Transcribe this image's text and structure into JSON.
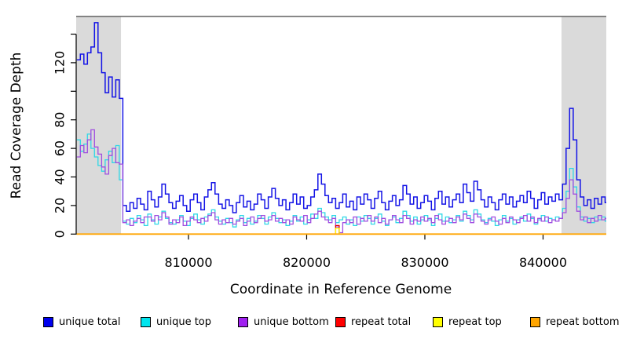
{
  "y_axis": {
    "label": "Read Coverage Depth",
    "ticks": [
      0,
      20,
      40,
      60,
      80,
      100,
      120,
      140
    ],
    "tick_labels": [
      "0",
      "20",
      "40",
      "60",
      "80",
      "",
      "120",
      ""
    ],
    "range": [
      0,
      152
    ]
  },
  "x_axis": {
    "label": "Coordinate in Reference Genome",
    "ticks": [
      810000,
      820000,
      830000,
      840000
    ],
    "tick_labels": [
      "810000",
      "820000",
      "830000",
      "840000"
    ],
    "range": [
      800500,
      845350
    ]
  },
  "legend": {
    "items": [
      {
        "label": "unique total",
        "color": "#0000EE"
      },
      {
        "label": "unique top",
        "color": "#00E5EE"
      },
      {
        "label": "unique bottom",
        "color": "#A020F0"
      },
      {
        "label": "repeat total",
        "color": "#FF0000"
      },
      {
        "label": "repeat top",
        "color": "#FFFF00"
      },
      {
        "label": "repeat bottom",
        "color": "#FFA500"
      }
    ]
  },
  "chart_data": {
    "type": "line",
    "step": true,
    "title": "",
    "xlabel": "Coordinate in Reference Genome",
    "ylabel": "Read Coverage Depth",
    "xlim": [
      800500,
      845350
    ],
    "ylim": [
      0,
      152
    ],
    "grid": false,
    "x_start": 800550,
    "x_step": 300,
    "n": 150,
    "shade_color": "#DADADA",
    "shaded_regions": [
      {
        "from": 800500,
        "to": 804290
      },
      {
        "from": 841560,
        "to": 845350
      }
    ],
    "series": [
      {
        "name": "unique total",
        "color": "#1414E6",
        "width": 1.5,
        "values": [
          122,
          126,
          119,
          127,
          131,
          148,
          127,
          113,
          99,
          110,
          96,
          108,
          95,
          20,
          16,
          22,
          18,
          25,
          21,
          17,
          30,
          24,
          19,
          26,
          35,
          28,
          22,
          18,
          23,
          27,
          20,
          16,
          24,
          28,
          22,
          17,
          26,
          31,
          36,
          28,
          21,
          18,
          24,
          20,
          15,
          22,
          27,
          19,
          23,
          17,
          21,
          28,
          24,
          18,
          26,
          32,
          25,
          20,
          24,
          17,
          22,
          28,
          21,
          26,
          18,
          20,
          26,
          31,
          42,
          35,
          27,
          22,
          25,
          18,
          22,
          28,
          19,
          23,
          17,
          26,
          21,
          28,
          24,
          18,
          25,
          30,
          22,
          17,
          23,
          27,
          20,
          24,
          34,
          28,
          21,
          26,
          18,
          22,
          27,
          23,
          17,
          25,
          30,
          21,
          26,
          19,
          24,
          28,
          22,
          35,
          29,
          23,
          37,
          31,
          24,
          19,
          26,
          22,
          17,
          24,
          28,
          21,
          26,
          19,
          23,
          27,
          22,
          30,
          25,
          18,
          24,
          29,
          21,
          26,
          23,
          28,
          24,
          35,
          60,
          88,
          66,
          38,
          26,
          20,
          24,
          18,
          25,
          21,
          26,
          22
        ]
      },
      {
        "name": "unique top",
        "color": "#2FD8E6",
        "width": 1.3,
        "values": [
          66,
          58,
          63,
          70,
          60,
          54,
          48,
          44,
          52,
          58,
          50,
          62,
          38,
          9,
          7,
          11,
          8,
          13,
          10,
          6,
          14,
          10,
          7,
          12,
          16,
          11,
          8,
          7,
          10,
          13,
          9,
          6,
          11,
          14,
          10,
          7,
          12,
          14,
          17,
          12,
          9,
          7,
          11,
          8,
          5,
          10,
          13,
          8,
          11,
          7,
          9,
          13,
          11,
          7,
          12,
          15,
          11,
          8,
          10,
          6,
          9,
          13,
          9,
          12,
          7,
          10,
          14,
          11,
          18,
          15,
          12,
          10,
          13,
          8,
          10,
          12,
          7,
          10,
          6,
          12,
          9,
          13,
          11,
          7,
          11,
          14,
          9,
          6,
          10,
          12,
          8,
          11,
          16,
          13,
          9,
          12,
          7,
          10,
          13,
          10,
          6,
          11,
          14,
          9,
          12,
          8,
          10,
          13,
          9,
          16,
          13,
          10,
          17,
          14,
          10,
          8,
          11,
          9,
          6,
          10,
          13,
          9,
          11,
          7,
          10,
          12,
          9,
          14,
          11,
          7,
          10,
          13,
          9,
          11,
          10,
          12,
          11,
          18,
          30,
          46,
          33,
          19,
          12,
          9,
          11,
          8,
          12,
          10,
          12,
          9
        ]
      },
      {
        "name": "unique bottom",
        "color": "#A04EE0",
        "width": 1.3,
        "values": [
          54,
          62,
          57,
          66,
          73,
          61,
          56,
          47,
          42,
          55,
          60,
          50,
          49,
          8,
          10,
          6,
          9,
          11,
          8,
          12,
          12,
          9,
          13,
          10,
          15,
          12,
          7,
          10,
          8,
          12,
          6,
          9,
          12,
          10,
          8,
          11,
          9,
          13,
          15,
          10,
          7,
          10,
          8,
          11,
          7,
          9,
          11,
          6,
          9,
          12,
          8,
          11,
          13,
          9,
          10,
          13,
          9,
          11,
          8,
          10,
          7,
          12,
          10,
          9,
          13,
          8,
          11,
          14,
          16,
          12,
          10,
          8,
          11,
          5,
          1,
          8,
          10,
          8,
          12,
          7,
          11,
          9,
          13,
          9,
          12,
          8,
          11,
          7,
          10,
          13,
          10,
          8,
          13,
          11,
          7,
          10,
          9,
          12,
          9,
          11,
          8,
          13,
          10,
          7,
          9,
          11,
          8,
          12,
          10,
          14,
          11,
          8,
          14,
          12,
          9,
          7,
          10,
          12,
          9,
          7,
          11,
          8,
          12,
          10,
          8,
          11,
          13,
          9,
          12,
          8,
          11,
          9,
          12,
          8,
          10,
          9,
          11,
          15,
          25,
          38,
          28,
          16,
          10,
          12,
          8,
          11,
          9,
          13,
          10,
          11
        ]
      },
      {
        "name": "repeat total",
        "color": "#E60000",
        "width": 1.3,
        "sparse": {
          "default": 0,
          "spikes": [
            {
              "index": 73,
              "value": 6
            }
          ]
        }
      },
      {
        "name": "repeat top",
        "color": "#FFFF00",
        "width": 1.3,
        "sparse": {
          "default": 0,
          "spikes": [
            {
              "index": 73,
              "value": 4
            }
          ]
        }
      },
      {
        "name": "repeat bottom",
        "color": "#FFA500",
        "width": 1.8,
        "sparse": {
          "default": 0,
          "spikes": []
        }
      }
    ]
  }
}
